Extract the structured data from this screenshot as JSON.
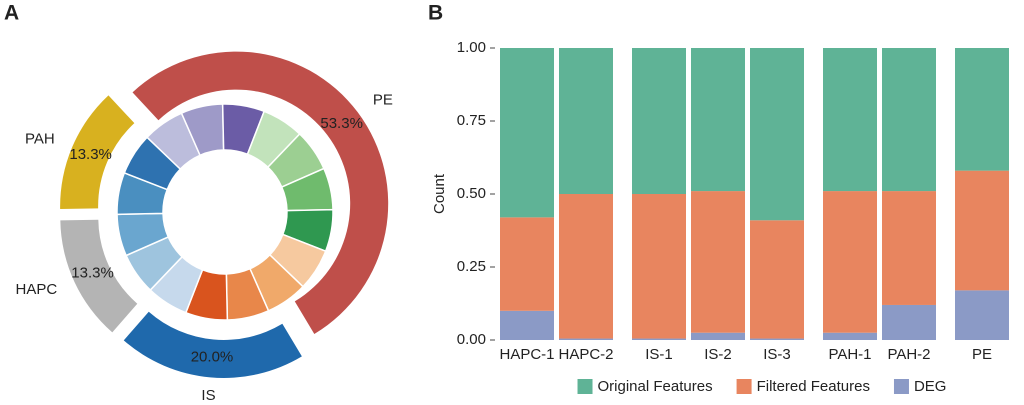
{
  "chart_data": [
    {
      "type": "donut",
      "panel_label": "A",
      "categories": [
        "PE",
        "IS",
        "HAPC",
        "PAH"
      ],
      "values": [
        53.3,
        20.0,
        13.3,
        13.3
      ],
      "value_labels": [
        "53.3%",
        "20.0%",
        "13.3%",
        "13.3%"
      ],
      "colors": [
        "#bf4f4a",
        "#1f69ac",
        "#b4b4b4",
        "#d8b11f"
      ],
      "inner": {
        "values": [
          1,
          1,
          1,
          1,
          1,
          1,
          1,
          1,
          1,
          1,
          1,
          1,
          1,
          1,
          1,
          1
        ],
        "colors": [
          "#bcbddc",
          "#9e9ac8",
          "#6b5ca6",
          "#c2e3bb",
          "#9ccf92",
          "#6fbb6d",
          "#2f9850",
          "#f6c99f",
          "#f0a96a",
          "#e8874a",
          "#d9541e",
          "#c6d9ec",
          "#9ec4de",
          "#6aa6cf",
          "#4a8fc0",
          "#2e72b0"
        ]
      }
    },
    {
      "type": "stacked_bar",
      "panel_label": "B",
      "ylabel": "Count",
      "categories": [
        "HAPC-1",
        "HAPC-2",
        "IS-1",
        "IS-2",
        "IS-3",
        "PAH-1",
        "PAH-2",
        "PE"
      ],
      "series": [
        {
          "name": "Original Features",
          "color": "#5fb396",
          "values": [
            0.58,
            0.5,
            0.5,
            0.49,
            0.59,
            0.49,
            0.49,
            0.42
          ]
        },
        {
          "name": "Filtered Features",
          "color": "#e8855f",
          "values": [
            0.32,
            0.495,
            0.495,
            0.485,
            0.405,
            0.485,
            0.39,
            0.41
          ]
        },
        {
          "name": "DEG",
          "color": "#8b9ac6",
          "values": [
            0.1,
            0.005,
            0.005,
            0.025,
            0.005,
            0.025,
            0.12,
            0.17
          ]
        }
      ],
      "ylim": [
        0,
        1
      ],
      "yticks": [
        {
          "value": 0,
          "label": "0.00"
        },
        {
          "value": 0.25,
          "label": "0.25"
        },
        {
          "value": 0.5,
          "label": "0.50"
        },
        {
          "value": 0.75,
          "label": "0.75"
        },
        {
          "value": 1,
          "label": "1.00"
        }
      ]
    }
  ]
}
